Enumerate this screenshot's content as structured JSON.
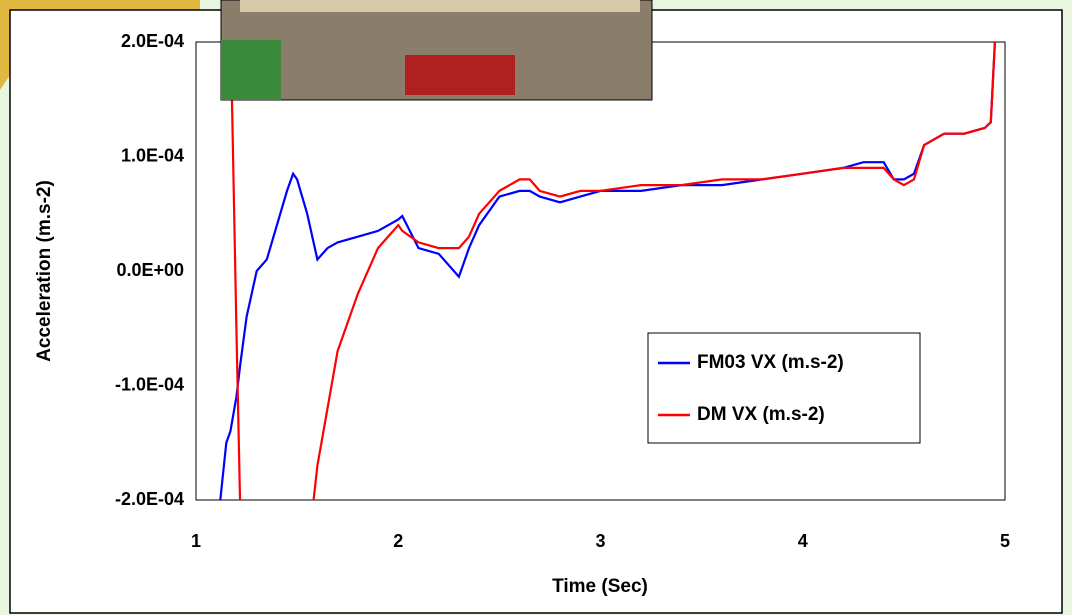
{
  "chart_data": {
    "type": "line",
    "x_label": "Time (Sec)",
    "y_label": "Acceleration (m.s-2)",
    "x": [
      1.12,
      1.15,
      1.17,
      1.2,
      1.22,
      1.25,
      1.3,
      1.35,
      1.4,
      1.45,
      1.48,
      1.5,
      1.55,
      1.6,
      1.65,
      1.7,
      1.8,
      1.9,
      2.0,
      2.02,
      2.1,
      2.2,
      2.3,
      2.35,
      2.4,
      2.5,
      2.6,
      2.65,
      2.7,
      2.8,
      2.9,
      3.0,
      3.2,
      3.4,
      3.6,
      3.8,
      4.0,
      4.2,
      4.3,
      4.4,
      4.45,
      4.5,
      4.55,
      4.6,
      4.7,
      4.8,
      4.9,
      4.93,
      4.95
    ],
    "series": [
      {
        "name": "FM03 VX (m.s-2)",
        "color": "#0000ff",
        "values": [
          -0.0002,
          -0.00015,
          -0.00014,
          -0.00011,
          -8e-05,
          -4e-05,
          0.0,
          1e-05,
          4e-05,
          7e-05,
          8.5e-05,
          8e-05,
          5e-05,
          1e-05,
          2e-05,
          2.5e-05,
          3e-05,
          3.5e-05,
          4.5e-05,
          4.8e-05,
          2e-05,
          1.5e-05,
          -5e-06,
          2e-05,
          4e-05,
          6.5e-05,
          7e-05,
          7e-05,
          6.5e-05,
          6e-05,
          6.5e-05,
          7e-05,
          7e-05,
          7.5e-05,
          7.5e-05,
          8e-05,
          8.5e-05,
          9e-05,
          9.5e-05,
          9.5e-05,
          8e-05,
          8e-05,
          8.5e-05,
          0.00011,
          0.00012,
          0.00012,
          0.000125,
          0.00013,
          0.0002
        ]
      },
      {
        "name": "DM VX (m.s-2)",
        "color": "#ff0000",
        "values": [
          null,
          null,
          0.00022,
          -5e-05,
          -0.00022,
          null,
          null,
          null,
          null,
          null,
          null,
          null,
          -0.00025,
          -0.00017,
          -0.00012,
          -7e-05,
          -2e-05,
          2e-05,
          4e-05,
          3.5e-05,
          2.5e-05,
          2e-05,
          2e-05,
          3e-05,
          5e-05,
          7e-05,
          8e-05,
          8e-05,
          7e-05,
          6.5e-05,
          7e-05,
          7e-05,
          7.5e-05,
          7.5e-05,
          8e-05,
          8e-05,
          8.5e-05,
          9e-05,
          9e-05,
          9e-05,
          8e-05,
          7.5e-05,
          8e-05,
          0.00011,
          0.00012,
          0.00012,
          0.000125,
          0.00013,
          0.0002
        ]
      }
    ],
    "xlim": [
      1,
      5
    ],
    "xticks": [
      1,
      2,
      3,
      4,
      5
    ],
    "ylim": [
      -0.0002,
      0.0002
    ],
    "yticks": [
      {
        "value": -0.0002,
        "label": "-2.0E-04"
      },
      {
        "value": -0.0001,
        "label": "-1.0E-04"
      },
      {
        "value": 0,
        "label": "0.0E+00"
      },
      {
        "value": 0.0001,
        "label": "1.0E-04"
      },
      {
        "value": 0.0002,
        "label": "2.0E-04"
      }
    ],
    "grid": true
  }
}
